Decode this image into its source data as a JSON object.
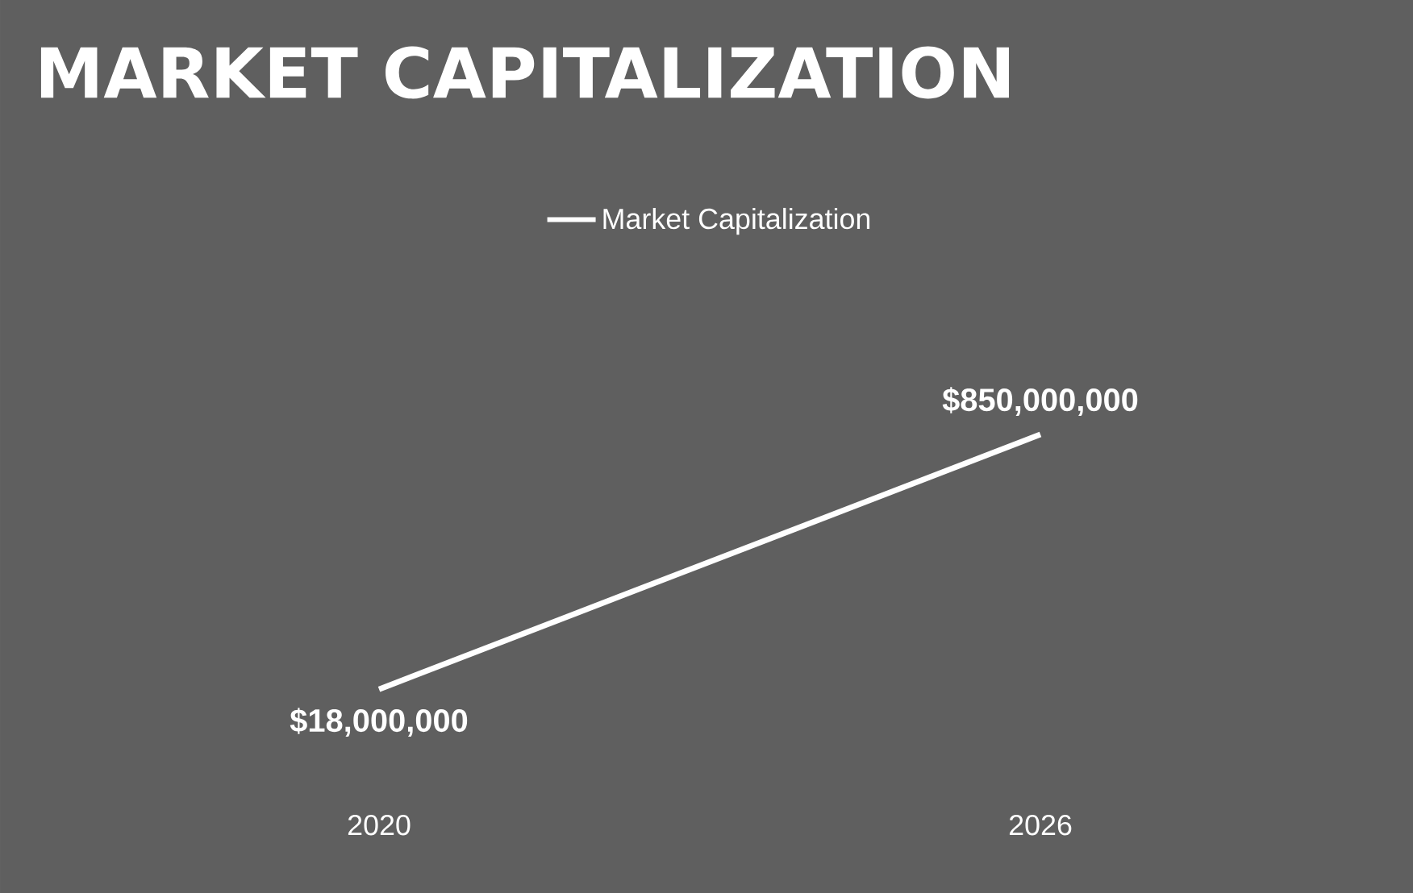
{
  "chart_data": {
    "type": "line",
    "title": "MARKET CAPITALIZATION",
    "categories": [
      "2020",
      "2026"
    ],
    "series": [
      {
        "name": "Market Capitalization",
        "color": "#ffffff",
        "values": [
          18000000,
          850000000
        ],
        "value_labels": [
          "$18,000,000",
          "$850,000,000"
        ]
      }
    ],
    "legend": "top",
    "marker": "none",
    "line_style": "solid"
  }
}
